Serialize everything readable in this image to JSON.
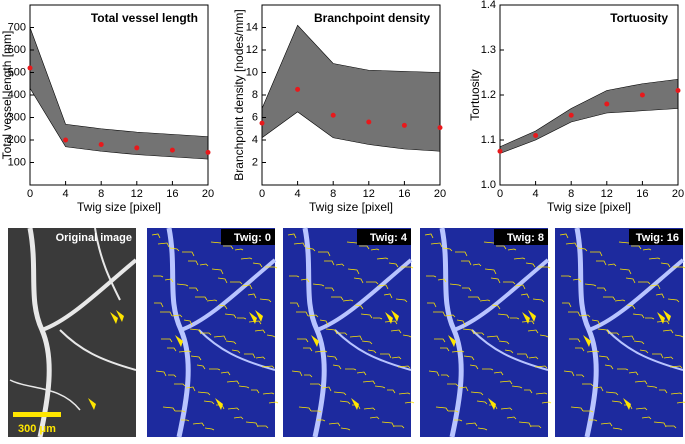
{
  "chart_data": [
    {
      "type": "line",
      "title": "Total vessel length",
      "xlabel": "Twig size [pixel]",
      "ylabel": "Total vessel length [mm]",
      "x": [
        0,
        4,
        8,
        12,
        16,
        20
      ],
      "values": [
        520,
        200,
        180,
        165,
        155,
        145
      ],
      "color": "#e8191c",
      "range_low": [
        430,
        170,
        150,
        135,
        125,
        115
      ],
      "range_high": [
        700,
        270,
        250,
        235,
        225,
        215
      ],
      "range_color": "#000000",
      "xlim": [
        0,
        20
      ],
      "xticks": [
        0,
        4,
        8,
        12,
        16,
        20
      ],
      "ylim": [
        0,
        800
      ],
      "yticks": [
        100,
        200,
        300,
        400,
        500,
        600,
        700
      ]
    },
    {
      "type": "line",
      "title": "Branchpoint density",
      "xlabel": "Twig size [pixel]",
      "ylabel": "Branchpoint density [nodes/mm]",
      "x": [
        0,
        4,
        8,
        12,
        16,
        20
      ],
      "values": [
        5.5,
        8.5,
        6.2,
        5.6,
        5.3,
        5.1
      ],
      "color": "#e8191c",
      "range_low": [
        4.2,
        6.5,
        4.2,
        3.6,
        3.2,
        3.0
      ],
      "range_high": [
        6.8,
        14.2,
        10.8,
        10.2,
        10.1,
        10.0
      ],
      "range_color": "#000000",
      "xlim": [
        0,
        20
      ],
      "xticks": [
        0,
        4,
        8,
        12,
        16,
        20
      ],
      "ylim": [
        0,
        16
      ],
      "yticks": [
        2,
        4,
        6,
        8,
        10,
        12,
        14
      ]
    },
    {
      "type": "line",
      "title": "Tortuosity",
      "xlabel": "Twig size [pixel]",
      "ylabel": "Tortuosity",
      "x": [
        0,
        4,
        8,
        12,
        16,
        20
      ],
      "values": [
        1.075,
        1.11,
        1.155,
        1.18,
        1.2,
        1.21
      ],
      "color": "#e8191c",
      "range_low": [
        1.07,
        1.1,
        1.14,
        1.16,
        1.165,
        1.17
      ],
      "range_high": [
        1.085,
        1.12,
        1.17,
        1.21,
        1.225,
        1.235
      ],
      "range_color": "#000000",
      "xlim": [
        0,
        20
      ],
      "xticks": [
        0,
        4,
        8,
        12,
        16,
        20
      ],
      "ylim": [
        1.0,
        1.4
      ],
      "yticks": [
        {
          "value": 1.0,
          "label": "1.0"
        },
        1.1,
        1.2,
        1.3,
        {
          "value": 1.4,
          "label": "1.4"
        }
      ]
    }
  ],
  "images": [
    {
      "label": "Original image"
    },
    {
      "label": "Twig: 0"
    },
    {
      "label": "Twig: 4"
    },
    {
      "label": "Twig: 8"
    },
    {
      "label": "Twig: 16"
    }
  ],
  "scale_bar": "300 μm"
}
